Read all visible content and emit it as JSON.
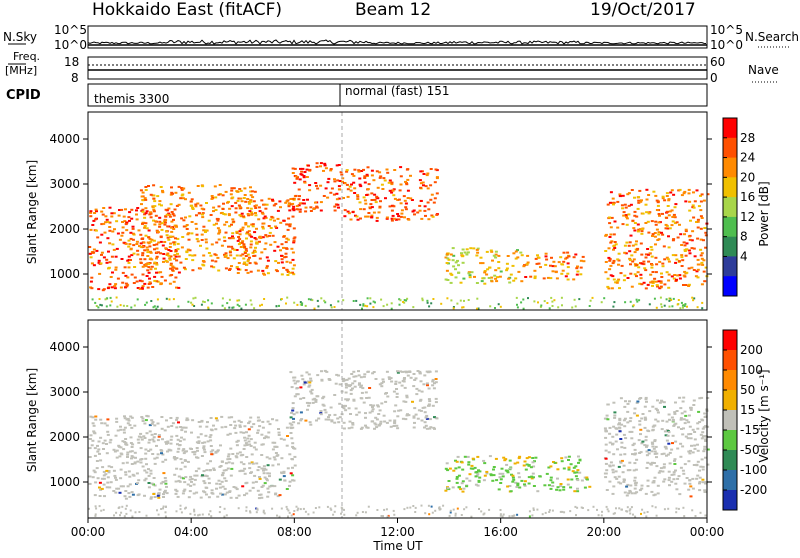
{
  "header": {
    "title": "Hokkaido East (fitACF)",
    "beam": "Beam 12",
    "date": "19/Oct/2017"
  },
  "top_strip": {
    "nsky_label": "N.Sky",
    "nsearch_label": "N.Search",
    "left_ticks": [
      "10^5",
      "10^0"
    ],
    "right_ticks": [
      "10^5",
      "10^0"
    ],
    "freq_label_1": "Freq.",
    "freq_label_2": "[MHz]",
    "freq_ticks": [
      "18",
      "8"
    ],
    "nave_label": "Nave",
    "nave_ticks": [
      "60",
      "0"
    ],
    "cpid_label": "CPID",
    "cpid_segments": [
      {
        "name": "themis 3300"
      },
      {
        "name": "normal (fast) 151"
      }
    ]
  },
  "chart_data": [
    {
      "type": "heatmap",
      "name": "power-panel",
      "ylabel": "Slant Range [km]",
      "yticks": [
        "4000",
        "3000",
        "2000",
        "1000"
      ],
      "ytick_values": [
        4000,
        3000,
        2000,
        1000
      ],
      "ylim": [
        200,
        4600
      ],
      "xlim_hours": [
        0,
        24
      ],
      "colorbar": {
        "label": "Power [dB]",
        "ticks": [
          "28",
          "24",
          "20",
          "16",
          "12",
          "8",
          "4"
        ],
        "range": [
          0,
          32
        ],
        "colors": [
          "#0000ff",
          "#2e3c9a",
          "#2f8a55",
          "#4fbe4f",
          "#a8d64a",
          "#f0c000",
          "#ff8a00",
          "#ff5000",
          "#ff0000"
        ]
      },
      "blobs": [
        {
          "t0": 0.0,
          "t1": 3.5,
          "r0": 650,
          "r1": 2500,
          "intensity": 0.85
        },
        {
          "t0": 2.0,
          "t1": 6.5,
          "r0": 1100,
          "r1": 3000,
          "intensity": 0.75
        },
        {
          "t0": 5.5,
          "t1": 8.0,
          "r0": 1000,
          "r1": 2700,
          "intensity": 0.8
        },
        {
          "t0": 7.8,
          "t1": 9.8,
          "r0": 2400,
          "r1": 3500,
          "intensity": 0.9
        },
        {
          "t0": 9.8,
          "t1": 13.5,
          "r0": 2200,
          "r1": 3400,
          "intensity": 0.85
        },
        {
          "t0": 13.8,
          "t1": 16.8,
          "r0": 800,
          "r1": 1600,
          "intensity": 0.6
        },
        {
          "t0": 16.8,
          "t1": 19.2,
          "r0": 900,
          "r1": 1500,
          "intensity": 0.8
        },
        {
          "t0": 20.0,
          "t1": 24.0,
          "r0": 700,
          "r1": 2900,
          "intensity": 0.8
        }
      ]
    },
    {
      "type": "heatmap",
      "name": "velocity-panel",
      "ylabel": "Slant Range [km]",
      "yticks": [
        "4000",
        "3000",
        "2000",
        "1000"
      ],
      "ytick_values": [
        4000,
        3000,
        2000,
        1000
      ],
      "ylim": [
        200,
        4600
      ],
      "xlim_hours": [
        0,
        24
      ],
      "xticks": [
        "00:00",
        "04:00",
        "08:00",
        "12:00",
        "16:00",
        "20:00",
        "00:00"
      ],
      "xtick_hours": [
        0,
        4,
        8,
        12,
        16,
        20,
        24
      ],
      "xlabel": "Time UT",
      "colorbar": {
        "label": "Velocity [m s⁻¹]",
        "ticks": [
          "200",
          "100",
          "50",
          "15",
          "-15",
          "-50",
          "-100",
          "-200"
        ],
        "colors": [
          "#1a2fb0",
          "#2e6fa8",
          "#2f8a55",
          "#5cc840",
          "#c0c0b8",
          "#f0b000",
          "#ff8a00",
          "#ff5000",
          "#ff0000"
        ]
      },
      "blobs": [
        {
          "t0": 0.0,
          "t1": 8.0,
          "r0": 650,
          "r1": 2500,
          "class": "gray"
        },
        {
          "t0": 7.8,
          "t1": 13.5,
          "r0": 2200,
          "r1": 3500,
          "class": "gray"
        },
        {
          "t0": 13.8,
          "t1": 19.4,
          "r0": 800,
          "r1": 1600,
          "class": "green"
        },
        {
          "t0": 20.0,
          "t1": 24.0,
          "r0": 700,
          "r1": 2900,
          "class": "gray"
        }
      ]
    }
  ]
}
